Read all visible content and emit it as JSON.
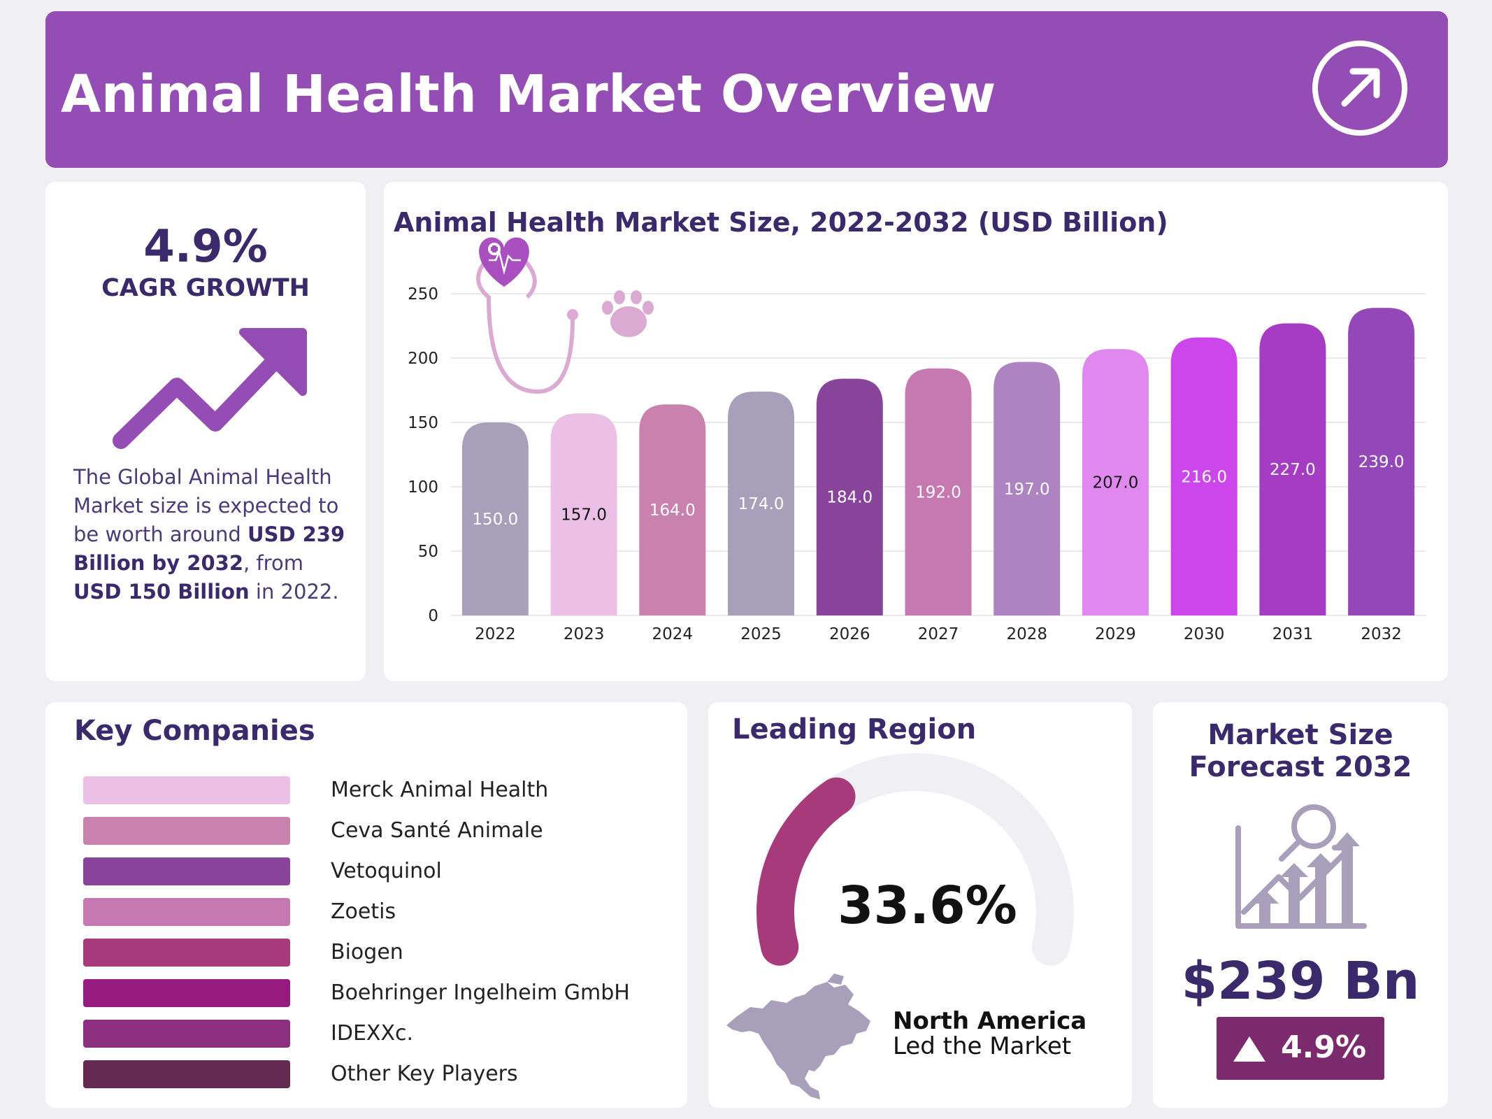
{
  "header": {
    "title": "Animal Health Market Overview",
    "icon": "arrow-up-right-circle-icon"
  },
  "cagr": {
    "value": "4.9%",
    "label": "CAGR GROWTH",
    "icon": "trend-up-arrow-icon",
    "desc": {
      "t1": "The Global Animal Health Market size is expected to be worth around ",
      "b1": "USD 239 Billion by 2032",
      "t2": ", from ",
      "b2": "USD 150 Billion",
      "t3": " in 2022."
    }
  },
  "chart_data": {
    "type": "bar",
    "title": "Animal Health Market Size, 2022-2032 (USD Billion)",
    "xlabel": "",
    "ylabel": "",
    "ylim": [
      0,
      250
    ],
    "yticks": [
      0,
      50,
      100,
      150,
      200,
      250
    ],
    "grid": true,
    "legend": "none",
    "categories": [
      "2022",
      "2023",
      "2024",
      "2025",
      "2026",
      "2027",
      "2028",
      "2029",
      "2030",
      "2031",
      "2032"
    ],
    "values": [
      150.0,
      157.0,
      164.0,
      174.0,
      184.0,
      192.0,
      197.0,
      207.0,
      216.0,
      227.0,
      239.0
    ],
    "value_labels": [
      "150.0",
      "157.0",
      "164.0",
      "174.0",
      "184.0",
      "192.0",
      "197.0",
      "207.0",
      "216.0",
      "227.0",
      "239.0"
    ],
    "bar_colors": [
      "#a8a0bb",
      "#ecc0e6",
      "#c982ad",
      "#a8a0bb",
      "#88449b",
      "#c678b0",
      "#ad83c2",
      "#e088ef",
      "#cc46ec",
      "#a63cc3",
      "#9447b8"
    ],
    "label_colors": [
      "#ffffff",
      "#111111",
      "#ffffff",
      "#ffffff",
      "#ffffff",
      "#ffffff",
      "#ffffff",
      "#111111",
      "#ffffff",
      "#ffffff",
      "#ffffff"
    ],
    "decoration_icons": [
      "stethoscope-heart-icon",
      "paw-print-icon"
    ]
  },
  "companies": {
    "title": "Key Companies",
    "items": [
      {
        "name": "Merck Animal Health",
        "color": "#ecc0e6"
      },
      {
        "name": "Ceva Santé Animale",
        "color": "#c982ad"
      },
      {
        "name": "Vetoquinol",
        "color": "#88449b"
      },
      {
        "name": "Zoetis",
        "color": "#c678b0"
      },
      {
        "name": "Biogen",
        "color": "#a63a7a"
      },
      {
        "name": "Boehringer Ingelheim GmbH",
        "color": "#951b7f"
      },
      {
        "name": "IDEXXc.",
        "color": "#8c2f80"
      },
      {
        "name": "Other Key Players",
        "color": "#652a52"
      }
    ]
  },
  "region": {
    "title": "Leading Region",
    "share": "33.6%",
    "share_fraction": 0.336,
    "name": "North America",
    "subtitle": "Led the Market",
    "gauge_color": "#a63a7a",
    "track_color": "#f0eff4",
    "map_icon": "north-america-map-icon"
  },
  "forecast": {
    "title": "Market Size Forecast 2032",
    "icon": "growth-chart-magnifier-icon",
    "value": "$239 Bn",
    "growth": "4.9%",
    "badge_icon": "triangle-up-icon",
    "badge_color": "#7b2a6e"
  }
}
